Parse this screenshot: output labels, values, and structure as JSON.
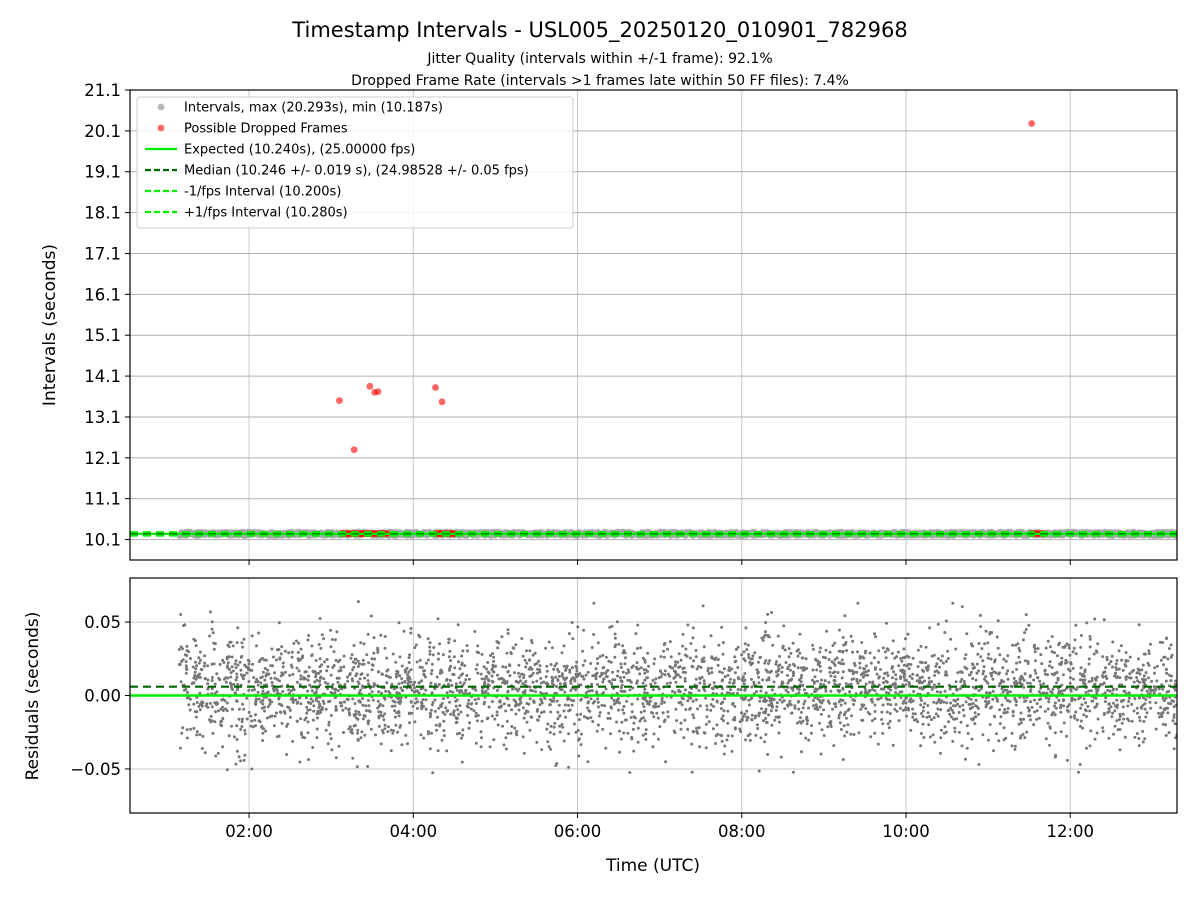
{
  "figure": {
    "title": "Timestamp Intervals - USL005_20250120_010901_782968",
    "subtitle_1": "Jitter Quality (intervals within +/-1 frame): 92.1%",
    "subtitle_2": "Dropped Frame Rate (intervals >1 frames late within 50 FF files): 7.4%"
  },
  "colors": {
    "intervals": "#a6a6a6",
    "dropped": "#ff0000",
    "expected": "#00ee00",
    "median": "#006400",
    "fps_bounds": "#00ee00",
    "residuals": "#777777",
    "grid": "#b0b0b0"
  },
  "chart_data": [
    {
      "type": "scatter",
      "ylabel": "Intervals (seconds)",
      "xlim_hours": [
        0.55,
        13.3
      ],
      "ylim": [
        9.6,
        21.1
      ],
      "yticks": [
        "10.1",
        "11.1",
        "12.1",
        "13.1",
        "14.1",
        "15.1",
        "16.1",
        "17.1",
        "18.1",
        "19.1",
        "20.1",
        "21.1"
      ],
      "grid": "horizontal and vertical",
      "legend_position": "upper-left",
      "legend": [
        {
          "label": "Intervals, max (20.293s), min (10.187s)",
          "style": "point",
          "color": "#a6a6a6"
        },
        {
          "label": "Possible Dropped Frames",
          "style": "point",
          "color": "#ff0000"
        },
        {
          "label": "Expected (10.240s), (25.00000 fps)",
          "style": "solid",
          "color": "#00ee00"
        },
        {
          "label": "Median (10.246 +/- 0.019 s), (24.98528 +/- 0.05 fps)",
          "style": "dashed",
          "color": "#006400"
        },
        {
          "label": "-1/fps Interval (10.200s)",
          "style": "dashed",
          "color": "#00ee00"
        },
        {
          "label": "+1/fps Interval (10.280s)",
          "style": "dashed",
          "color": "#00ee00"
        }
      ],
      "intervals_range": {
        "x_start": 1.15,
        "x_end": 13.3,
        "y_min": 10.187,
        "y_max": 10.293
      },
      "lines": {
        "expected": 10.24,
        "median": 10.246,
        "minus_fps": 10.2,
        "plus_fps": 10.28
      },
      "dropped_outliers": [
        {
          "x": 3.1,
          "y": 13.5
        },
        {
          "x": 3.28,
          "y": 12.3
        },
        {
          "x": 3.47,
          "y": 13.85
        },
        {
          "x": 3.53,
          "y": 13.7
        },
        {
          "x": 3.57,
          "y": 13.72
        },
        {
          "x": 4.27,
          "y": 13.82
        },
        {
          "x": 4.35,
          "y": 13.47
        },
        {
          "x": 11.53,
          "y": 20.28
        }
      ],
      "dropped_clusters": [
        {
          "x_start": 3.12,
          "x_end": 3.68,
          "y": 10.245
        },
        {
          "x_start": 4.27,
          "x_end": 4.5,
          "y": 10.245
        },
        {
          "x_start": 11.52,
          "x_end": 11.68,
          "y": 10.245
        }
      ]
    },
    {
      "type": "scatter",
      "ylabel": "Residuals (seconds)",
      "xlabel": "Time (UTC)",
      "xlim_hours": [
        0.55,
        13.3
      ],
      "ylim": [
        -0.08,
        0.08
      ],
      "yticks": [
        {
          "value": 0.05,
          "label": "0.05"
        },
        {
          "value": 0.0,
          "label": "0.00"
        },
        {
          "value": -0.05,
          "label": "−0.05"
        }
      ],
      "xticks": [
        {
          "value": 2,
          "label": "02:00"
        },
        {
          "value": 4,
          "label": "04:00"
        },
        {
          "value": 6,
          "label": "06:00"
        },
        {
          "value": 8,
          "label": "08:00"
        },
        {
          "value": 10,
          "label": "10:00"
        },
        {
          "value": 12,
          "label": "12:00"
        }
      ],
      "grid": "horizontal and vertical",
      "lines": {
        "expected": 0.0,
        "median": 0.006
      },
      "residuals_range": {
        "x_start": 1.15,
        "x_end": 13.3,
        "y_min": -0.053,
        "y_max": 0.064,
        "std": 0.019
      }
    }
  ]
}
